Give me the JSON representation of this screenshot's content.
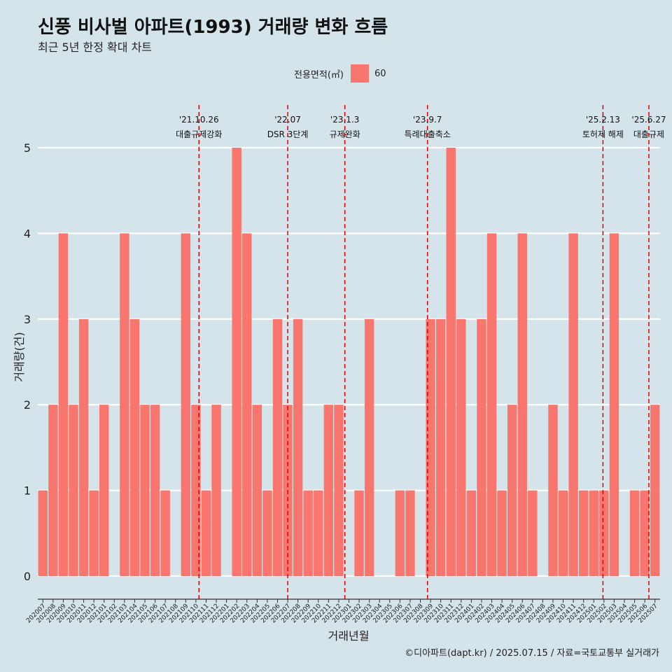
{
  "title": "신풍 비사벌 아파트(1993) 거래량 변화 흐름",
  "subtitle": "최근 5년 한정 확대 차트",
  "caption": "©디아파트(dapt.kr) / 2025.07.15 / 자료=국토교통부 실거래가",
  "legend": {
    "title": "전용면적(㎡)",
    "items": [
      {
        "label": "60",
        "color": "#f8766d"
      }
    ]
  },
  "colors": {
    "bar": "#f8766d",
    "background": "#d5e3ea",
    "grid": "#ffffff",
    "event_line": "#e00000"
  },
  "chart_data": {
    "type": "bar",
    "xlabel": "거래년월",
    "ylabel": "거래량(건)",
    "ylim": [
      0,
      5
    ],
    "yticks": [
      0,
      1,
      2,
      3,
      4,
      5
    ],
    "grid": "horizontal",
    "legend_position": "top",
    "categories": [
      "202007",
      "202008",
      "202009",
      "202010",
      "202011",
      "202012",
      "202101",
      "202102",
      "202103",
      "202104",
      "202105",
      "202106",
      "202107",
      "202108",
      "202109",
      "202110",
      "202111",
      "202112",
      "202201",
      "202202",
      "202203",
      "202204",
      "202205",
      "202206",
      "202207",
      "202208",
      "202209",
      "202210",
      "202211",
      "202212",
      "202301",
      "202302",
      "202303",
      "202304",
      "202305",
      "202306",
      "202307",
      "202308",
      "202309",
      "202310",
      "202311",
      "202312",
      "202401",
      "202402",
      "202403",
      "202404",
      "202405",
      "202406",
      "202407",
      "202408",
      "202409",
      "202410",
      "202411",
      "202412",
      "202501",
      "202502",
      "202503",
      "202504",
      "202505",
      "202506",
      "202507"
    ],
    "series": [
      {
        "name": "60",
        "values": [
          1,
          2,
          4,
          2,
          3,
          1,
          2,
          0,
          4,
          3,
          2,
          2,
          1,
          0,
          4,
          2,
          1,
          2,
          0,
          5,
          4,
          2,
          1,
          3,
          2,
          3,
          1,
          1,
          2,
          2,
          0,
          1,
          3,
          0,
          0,
          1,
          1,
          0,
          3,
          3,
          5,
          3,
          1,
          3,
          4,
          1,
          2,
          4,
          1,
          0,
          2,
          1,
          4,
          1,
          1,
          1,
          4,
          0,
          1,
          1,
          2
        ]
      }
    ],
    "annotations": [
      {
        "date": "'21.10.26",
        "label": "대출규제강화",
        "at": "202110",
        "offset": 0.8
      },
      {
        "date": "'22.07",
        "label": "DSR 3단계",
        "at": "202207",
        "offset": 0.5
      },
      {
        "date": "'23.1.3",
        "label": "규제완화",
        "at": "202301",
        "offset": 0.1
      },
      {
        "date": "'23.9.7",
        "label": "특례대출축소",
        "at": "202309",
        "offset": 0.2
      },
      {
        "date": "'25.2.13",
        "label": "토허제 해제",
        "at": "202502",
        "offset": 0.4
      },
      {
        "date": "'25.6.27",
        "label": "대출규제",
        "at": "202506",
        "offset": 0.9
      }
    ]
  }
}
